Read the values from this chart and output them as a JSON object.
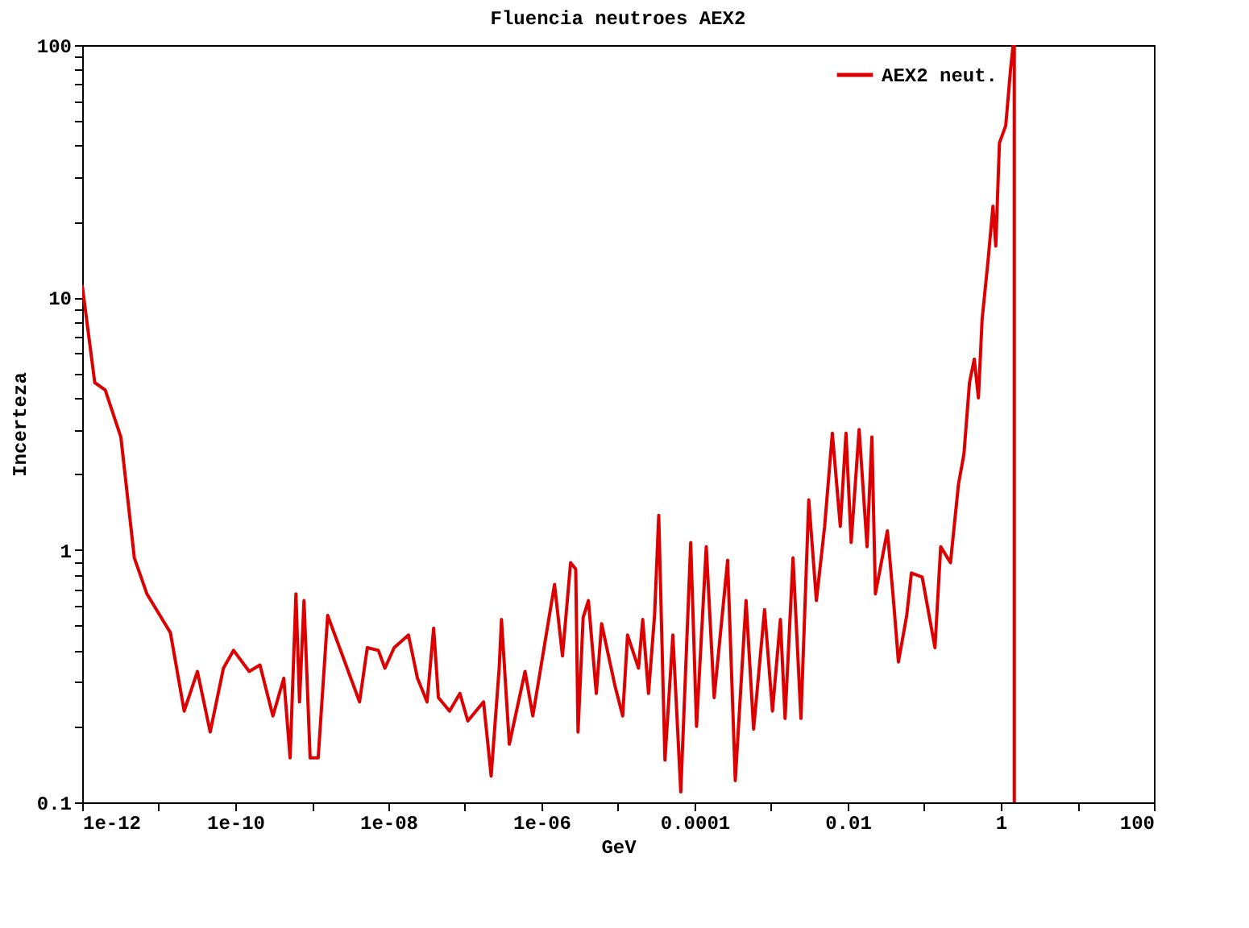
{
  "chart_data": {
    "type": "line",
    "title": "Fluencia neutroes AEX2",
    "xlabel": "GeV",
    "ylabel": "Incerteza",
    "log": "xy",
    "grid": false,
    "legend": "top right",
    "marker": "none",
    "line_style": "solid",
    "xlim": [
      1e-12,
      100
    ],
    "ylim": [
      0.1,
      100
    ],
    "xticks": [
      {
        "value": 1e-12,
        "label": "1e-12"
      },
      {
        "value": 1e-11,
        "label": null
      },
      {
        "value": 1e-10,
        "label": "1e-10"
      },
      {
        "value": 1e-09,
        "label": null
      },
      {
        "value": 1e-08,
        "label": "1e-08"
      },
      {
        "value": 1e-07,
        "label": null
      },
      {
        "value": 1e-06,
        "label": "1e-06"
      },
      {
        "value": 1e-05,
        "label": null
      },
      {
        "value": 0.0001,
        "label": "0.0001"
      },
      {
        "value": 0.001,
        "label": null
      },
      {
        "value": 0.01,
        "label": "0.01"
      },
      {
        "value": 0.1,
        "label": null
      },
      {
        "value": 1,
        "label": "1"
      },
      {
        "value": 10,
        "label": null
      },
      {
        "value": 100,
        "label": "100"
      }
    ],
    "yticks": [
      0.1,
      {
        "value": 0.2,
        "label": null
      },
      {
        "value": 0.3,
        "label": null
      },
      {
        "value": 0.4,
        "label": null
      },
      {
        "value": 0.5,
        "label": null
      },
      {
        "value": 0.6,
        "label": null
      },
      {
        "value": 0.7,
        "label": null
      },
      {
        "value": 0.8,
        "label": null
      },
      {
        "value": 0.9,
        "label": null
      },
      1,
      {
        "value": 2,
        "label": null
      },
      {
        "value": 3,
        "label": null
      },
      {
        "value": 4,
        "label": null
      },
      {
        "value": 5,
        "label": null
      },
      {
        "value": 6,
        "label": null
      },
      {
        "value": 7,
        "label": null
      },
      {
        "value": 8,
        "label": null
      },
      {
        "value": 9,
        "label": null
      },
      10,
      {
        "value": 20,
        "label": null
      },
      {
        "value": 30,
        "label": null
      },
      {
        "value": 40,
        "label": null
      },
      {
        "value": 50,
        "label": null
      },
      {
        "value": 60,
        "label": null
      },
      {
        "value": 70,
        "label": null
      },
      {
        "value": 80,
        "label": null
      },
      {
        "value": 90,
        "label": null
      },
      100
    ],
    "series": [
      {
        "name": "AEX2 neut.",
        "color": "#dd0000",
        "x": [
          1e-12,
          1.46e-12,
          2e-12,
          3.2e-12,
          4.8e-12,
          7e-12,
          1.42e-11,
          2.15e-11,
          3.2e-11,
          4.7e-11,
          7e-11,
          9.5e-11,
          1.52e-10,
          2.1e-10,
          3.1e-10,
          4.3e-10,
          5.2e-10,
          6.2e-10,
          6.9e-10,
          7.9e-10,
          9.5e-10,
          1.21e-09,
          1.61e-09,
          4.2e-09,
          5.3e-09,
          7.4e-09,
          9e-09,
          1.19e-08,
          1.83e-08,
          2.4e-08,
          3.2e-08,
          3.9e-08,
          4.5e-08,
          6.3e-08,
          8.6e-08,
          1.09e-07,
          1.75e-07,
          2.2e-07,
          2.8e-07,
          3e-07,
          3.8e-07,
          6.1e-07,
          7.7e-07,
          1.48e-06,
          1.88e-06,
          2.4e-06,
          2.8e-06,
          3e-06,
          3.5e-06,
          4.1e-06,
          5.2e-06,
          6.1e-06,
          9.1e-06,
          1.15e-05,
          1.33e-05,
          1.85e-05,
          2.1e-05,
          2.5e-05,
          3e-05,
          3.4e-05,
          4.1e-05,
          5.2e-05,
          6.6e-05,
          8.9e-05,
          0.000106,
          0.000142,
          0.00018,
          0.00027,
          0.00034,
          0.00047,
          0.00059,
          0.00082,
          0.00104,
          0.00132,
          0.00152,
          0.00193,
          0.00245,
          0.0031,
          0.0039,
          0.005,
          0.0063,
          0.008,
          0.0095,
          0.0111,
          0.0141,
          0.0179,
          0.0207,
          0.023,
          0.033,
          0.04,
          0.046,
          0.059,
          0.068,
          0.094,
          0.138,
          0.164,
          0.22,
          0.28,
          0.33,
          0.39,
          0.45,
          0.51,
          0.57,
          0.68,
          0.79,
          0.86,
          0.96,
          1.16,
          1.34,
          1.45,
          1.5,
          1.5
        ],
        "values": [
          11.2,
          4.6,
          4.3,
          2.8,
          0.93,
          0.67,
          0.47,
          0.23,
          0.33,
          0.19,
          0.34,
          0.4,
          0.33,
          0.35,
          0.22,
          0.31,
          0.15,
          0.67,
          0.25,
          0.63,
          0.15,
          0.15,
          0.55,
          0.25,
          0.41,
          0.4,
          0.34,
          0.41,
          0.46,
          0.31,
          0.25,
          0.49,
          0.26,
          0.23,
          0.27,
          0.21,
          0.25,
          0.127,
          0.34,
          0.53,
          0.17,
          0.33,
          0.22,
          0.73,
          0.38,
          0.89,
          0.84,
          0.19,
          0.54,
          0.63,
          0.27,
          0.51,
          0.29,
          0.22,
          0.46,
          0.34,
          0.53,
          0.27,
          0.55,
          1.37,
          0.147,
          0.46,
          0.11,
          1.07,
          0.2,
          1.03,
          0.26,
          0.91,
          0.122,
          0.63,
          0.195,
          0.58,
          0.23,
          0.53,
          0.215,
          0.93,
          0.215,
          1.58,
          0.63,
          1.24,
          2.9,
          1.24,
          2.9,
          1.07,
          3.0,
          1.03,
          2.8,
          0.67,
          1.19,
          0.61,
          0.36,
          0.55,
          0.81,
          0.78,
          0.41,
          1.03,
          0.89,
          1.82,
          2.4,
          4.6,
          5.7,
          4.0,
          8.2,
          13.9,
          23,
          16,
          41,
          48,
          80,
          100,
          100,
          0.1
        ]
      }
    ]
  }
}
